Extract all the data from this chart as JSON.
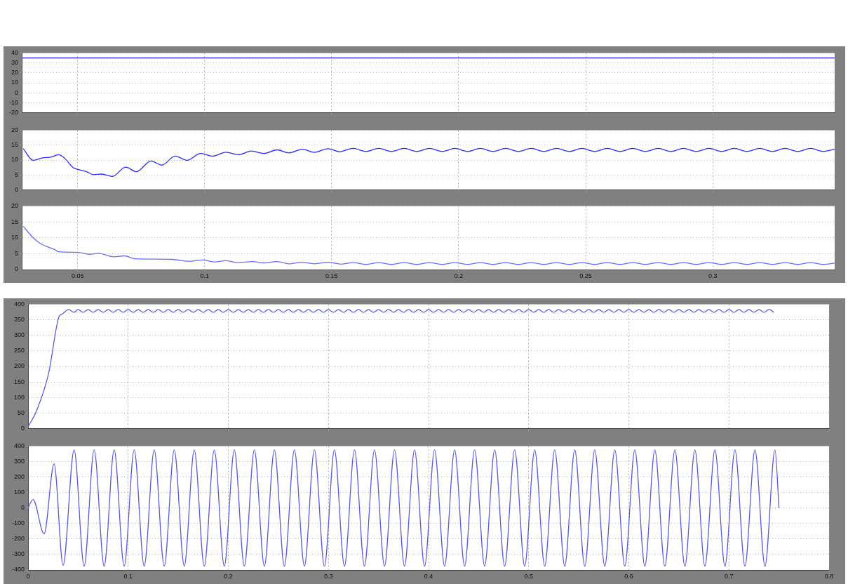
{
  "chart_data": [
    {
      "type": "line",
      "x": [
        0.028,
        0.348
      ],
      "values": [
        35,
        35
      ],
      "color": "#3a3aff",
      "xlim": [
        0.028,
        0.348
      ],
      "xticks": [
        0.05,
        0.1,
        0.15,
        0.2,
        0.25,
        0.3
      ],
      "ylim": [
        -20,
        40
      ],
      "yticks": [
        -20,
        -10,
        0,
        10,
        20,
        30,
        40
      ],
      "grid": true,
      "tick_labels": "y",
      "marker": "none",
      "line_style": "solid"
    },
    {
      "type": "line",
      "x": [
        0.0286,
        0.0325,
        0.0367,
        0.039,
        0.0425,
        0.045,
        0.0483,
        0.0504,
        0.0536,
        0.0562,
        0.0594,
        0.0636,
        0.0689,
        0.0731,
        0.0789,
        0.0831,
        0.0884,
        0.0931,
        0.0984,
        0.1032,
        0.1084,
        0.1132,
        0.1184,
        0.1232,
        0.1285,
        0.1332,
        0.1385,
        0.1432,
        0.1485,
        0.1532,
        0.1585,
        0.1635,
        0.1685,
        0.1735,
        0.1785,
        0.1835,
        0.1885,
        0.1935,
        0.1985,
        0.2035,
        0.2085,
        0.2135,
        0.2185,
        0.2235,
        0.2285,
        0.2335,
        0.2385,
        0.2435,
        0.2485,
        0.2535,
        0.2585,
        0.2635,
        0.2685,
        0.2735,
        0.2785,
        0.2835,
        0.2885,
        0.2935,
        0.2985,
        0.3035,
        0.3085,
        0.3135,
        0.3185,
        0.3235,
        0.3285,
        0.3335,
        0.3385,
        0.3435,
        0.348
      ],
      "values": [
        13.8,
        9.9,
        10.8,
        10.9,
        11.8,
        10.5,
        7.4,
        6.8,
        6.1,
        5.1,
        5.3,
        4.5,
        7.6,
        6.1,
        9.7,
        8.3,
        11.3,
        9.9,
        12.2,
        11.3,
        12.6,
        11.8,
        13,
        12.2,
        13.4,
        12.4,
        13.6,
        12.6,
        13.8,
        12.8,
        13.9,
        12.9,
        13.9,
        12.9,
        13.9,
        12.9,
        13.9,
        12.9,
        13.9,
        12.9,
        13.9,
        12.9,
        13.9,
        12.9,
        13.9,
        12.9,
        13.9,
        12.9,
        13.9,
        12.9,
        13.9,
        12.9,
        13.9,
        12.9,
        13.9,
        12.9,
        13.9,
        12.9,
        13.9,
        12.9,
        13.9,
        12.9,
        13.9,
        12.9,
        13.9,
        12.9,
        13.9,
        12.9,
        13.6
      ],
      "color": "#2a2aff",
      "xlim": [
        0.028,
        0.348
      ],
      "xticks": [
        0.05,
        0.1,
        0.15,
        0.2,
        0.25,
        0.3
      ],
      "ylim": [
        0,
        20
      ],
      "yticks": [
        0,
        5,
        10,
        15,
        20
      ],
      "grid": true,
      "tick_labels": "y",
      "marker": "none",
      "line_style": "solid"
    },
    {
      "type": "line",
      "x": [
        0.0286,
        0.0325,
        0.0357,
        0.0409,
        0.0425,
        0.0504,
        0.0546,
        0.0583,
        0.0642,
        0.0684,
        0.0726,
        0.08,
        0.0873,
        0.0937,
        0.099,
        0.1042,
        0.1084,
        0.1127,
        0.119,
        0.1232,
        0.1285,
        0.1337,
        0.138,
        0.1432,
        0.1485,
        0.1538,
        0.1585,
        0.1635,
        0.1685,
        0.1735,
        0.1785,
        0.1835,
        0.1885,
        0.1935,
        0.1985,
        0.2035,
        0.2085,
        0.2135,
        0.2185,
        0.2235,
        0.2285,
        0.2335,
        0.2385,
        0.2435,
        0.2485,
        0.2535,
        0.2585,
        0.2635,
        0.2685,
        0.2735,
        0.2785,
        0.2835,
        0.2885,
        0.2935,
        0.2985,
        0.3035,
        0.3085,
        0.3135,
        0.3185,
        0.3235,
        0.3285,
        0.3335,
        0.3385,
        0.3435,
        0.348
      ],
      "values": [
        13.6,
        10,
        8,
        6.3,
        5.6,
        5.4,
        4.8,
        5.1,
        4,
        4.3,
        3.4,
        3.3,
        3.2,
        2.6,
        3,
        2.4,
        2.8,
        2.2,
        2.5,
        2.1,
        2.5,
        1.8,
        2.3,
        1.8,
        2.3,
        1.7,
        2.2,
        1.6,
        2.2,
        1.6,
        2.2,
        1.6,
        2.2,
        1.6,
        2.2,
        1.6,
        2.2,
        1.6,
        2.2,
        1.6,
        2.2,
        1.6,
        2.2,
        1.6,
        2.2,
        1.6,
        2.2,
        1.6,
        2.2,
        1.6,
        2.2,
        1.6,
        2.2,
        1.6,
        2.2,
        1.6,
        2.2,
        1.6,
        2.2,
        1.6,
        2.2,
        1.6,
        2.2,
        1.6,
        2
      ],
      "color": "#6a6aff",
      "xlim": [
        0.028,
        0.348
      ],
      "xticks": [
        0.05,
        0.1,
        0.15,
        0.2,
        0.25,
        0.3
      ],
      "ylim": [
        0,
        20
      ],
      "yticks": [
        0,
        5,
        10,
        15,
        20
      ],
      "grid": true,
      "marker": "none",
      "line_style": "solid"
    },
    {
      "type": "line",
      "x": [
        0,
        0.0085,
        0.0205,
        0.0312,
        0.0339,
        0.0405,
        0.0459,
        0.05,
        0.055,
        0.06,
        0.065,
        0.07,
        0.075,
        0.08,
        0.085,
        0.09,
        0.095,
        0.1,
        0.105,
        0.11,
        0.115,
        0.12,
        0.125,
        0.13,
        0.135,
        0.14,
        0.145,
        0.15,
        0.155,
        0.16,
        0.165,
        0.17,
        0.175,
        0.18,
        0.185,
        0.19,
        0.195,
        0.2,
        0.205,
        0.21,
        0.215,
        0.22,
        0.225,
        0.23,
        0.235,
        0.24,
        0.245,
        0.25,
        0.255,
        0.26,
        0.265,
        0.27,
        0.275,
        0.28,
        0.285,
        0.29,
        0.295,
        0.3,
        0.305,
        0.31,
        0.315,
        0.32,
        0.325,
        0.33,
        0.335,
        0.34,
        0.345,
        0.35,
        0.355,
        0.36,
        0.365,
        0.37,
        0.375,
        0.38,
        0.385,
        0.39,
        0.395,
        0.4,
        0.405,
        0.41,
        0.415,
        0.42,
        0.425,
        0.43,
        0.435,
        0.44,
        0.445,
        0.45,
        0.455,
        0.46,
        0.465,
        0.47,
        0.475,
        0.48,
        0.485,
        0.49,
        0.495,
        0.5,
        0.505,
        0.51,
        0.515,
        0.52,
        0.525,
        0.53,
        0.535,
        0.54,
        0.545,
        0.55,
        0.555,
        0.56,
        0.565,
        0.57,
        0.575,
        0.58,
        0.585,
        0.59,
        0.595,
        0.6,
        0.605,
        0.61,
        0.615,
        0.62,
        0.625,
        0.63,
        0.635,
        0.64,
        0.645,
        0.65,
        0.655,
        0.66,
        0.665,
        0.67,
        0.675,
        0.68,
        0.685,
        0.69,
        0.695,
        0.7,
        0.705,
        0.71,
        0.715,
        0.72,
        0.725,
        0.73,
        0.735,
        0.74,
        0.745
      ],
      "values": [
        6,
        57,
        177,
        362,
        368,
        383,
        374,
        383,
        374,
        383,
        374,
        383,
        374,
        383,
        374,
        383,
        374,
        383,
        374,
        383,
        374,
        383,
        374,
        383,
        374,
        383,
        374,
        383,
        374,
        383,
        374,
        383,
        374,
        383,
        374,
        383,
        374,
        383,
        374,
        383,
        374,
        383,
        374,
        383,
        374,
        383,
        374,
        383,
        374,
        383,
        374,
        383,
        374,
        383,
        374,
        383,
        374,
        383,
        374,
        383,
        374,
        383,
        374,
        383,
        374,
        383,
        374,
        383,
        374,
        383,
        374,
        383,
        374,
        383,
        374,
        383,
        374,
        383,
        374,
        383,
        374,
        383,
        374,
        383,
        374,
        383,
        374,
        383,
        374,
        383,
        374,
        383,
        374,
        383,
        374,
        383,
        374,
        383,
        374,
        383,
        374,
        383,
        374,
        383,
        374,
        383,
        374,
        383,
        374,
        383,
        374,
        383,
        374,
        383,
        374,
        383,
        374,
        383,
        374,
        383,
        374,
        383,
        374,
        383,
        374,
        383,
        374,
        383,
        374,
        383,
        374,
        383,
        374,
        383,
        374,
        383,
        374,
        383,
        374,
        383,
        374,
        383,
        374,
        383,
        374,
        383,
        374
      ],
      "color": "#5a5ae0",
      "xlim": [
        0,
        0.8
      ],
      "xticks": [
        0,
        0.1,
        0.2,
        0.3,
        0.4,
        0.5,
        0.6,
        0.7,
        0.8
      ],
      "ylim": [
        0,
        400
      ],
      "yticks": [
        0,
        50,
        100,
        150,
        200,
        250,
        300,
        350,
        400
      ],
      "grid": true,
      "tick_labels": "y",
      "marker": "none",
      "line_style": "solid"
    },
    {
      "type": "line",
      "x": [
        0,
        0.005,
        0.016,
        0.026,
        0.035,
        0.046,
        0.056,
        0.066,
        0.076,
        0.086,
        0.096,
        0.106,
        0.116,
        0.126,
        0.136,
        0.146,
        0.156,
        0.166,
        0.176,
        0.186,
        0.196,
        0.206,
        0.216,
        0.226,
        0.236,
        0.246,
        0.256,
        0.266,
        0.276,
        0.286,
        0.296,
        0.306,
        0.316,
        0.326,
        0.336,
        0.346,
        0.356,
        0.366,
        0.376,
        0.386,
        0.396,
        0.406,
        0.416,
        0.426,
        0.436,
        0.446,
        0.456,
        0.466,
        0.476,
        0.486,
        0.496,
        0.506,
        0.516,
        0.526,
        0.536,
        0.546,
        0.556,
        0.566,
        0.576,
        0.586,
        0.596,
        0.606,
        0.616,
        0.626,
        0.636,
        0.646,
        0.656,
        0.666,
        0.676,
        0.686,
        0.696,
        0.706,
        0.716,
        0.726,
        0.736,
        0.746,
        0.75
      ],
      "values": [
        0,
        55,
        -167,
        285,
        -370,
        375,
        -375,
        375,
        -375,
        375,
        -375,
        375,
        -375,
        375,
        -375,
        375,
        -375,
        375,
        -375,
        375,
        -375,
        375,
        -375,
        375,
        -375,
        375,
        -375,
        375,
        -375,
        375,
        -375,
        375,
        -375,
        375,
        -375,
        375,
        -375,
        375,
        -375,
        375,
        -375,
        375,
        -375,
        375,
        -375,
        375,
        -375,
        375,
        -375,
        375,
        -375,
        375,
        -375,
        375,
        -375,
        375,
        -375,
        375,
        -375,
        375,
        -375,
        375,
        -375,
        375,
        -375,
        375,
        -375,
        375,
        -375,
        375,
        -375,
        375,
        -375,
        375,
        -375,
        375,
        0
      ],
      "color": "#5a5ae0",
      "xlim": [
        0,
        0.8
      ],
      "xticks": [
        0,
        0.1,
        0.2,
        0.3,
        0.4,
        0.5,
        0.6,
        0.7,
        0.8
      ],
      "ylim": [
        -400,
        400
      ],
      "yticks": [
        -400,
        -300,
        -200,
        -100,
        0,
        100,
        200,
        300,
        400
      ],
      "grid": true,
      "marker": "none",
      "line_style": "solid"
    }
  ]
}
